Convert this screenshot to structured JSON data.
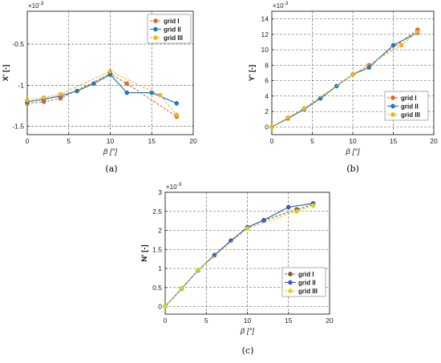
{
  "chart_data": [
    {
      "type": "line",
      "caption": "(a)",
      "ylabel": "X' [-]",
      "xlabel": "β [°]",
      "exponent": "×10",
      "exponent_power": "-3",
      "xlim": [
        0,
        20
      ],
      "ylim": [
        -1.6,
        -0.1
      ],
      "xticks": [
        "0",
        "5",
        "10",
        "15",
        "20"
      ],
      "xtick_values": [
        0,
        5,
        10,
        15,
        20
      ],
      "yticks": [
        "-0.5",
        "-1",
        "-1.5"
      ],
      "ytick_values": [
        -0.5,
        -1.0,
        -1.5
      ],
      "grid": true,
      "legend_position": "top-right",
      "series": [
        {
          "name": "grid I",
          "color": "#E8632B",
          "style": "dashed",
          "x": [
            0,
            2,
            4,
            10,
            12,
            18
          ],
          "y": [
            -1.22,
            -1.2,
            -1.16,
            -0.86,
            -0.98,
            -1.38
          ]
        },
        {
          "name": "grid II",
          "color": "#1F7BB8",
          "style": "solid",
          "x": [
            0,
            2,
            4,
            6,
            8,
            10,
            12,
            15,
            18
          ],
          "y": [
            -1.2,
            -1.17,
            -1.13,
            -1.07,
            -0.98,
            -0.87,
            -1.09,
            -1.09,
            -1.22
          ]
        },
        {
          "name": "grid III",
          "color": "#F2B21B",
          "style": "dashed",
          "x": [
            0,
            2,
            4,
            10,
            16,
            18
          ],
          "y": [
            -1.18,
            -1.15,
            -1.11,
            -0.83,
            -1.12,
            -1.36
          ]
        }
      ]
    },
    {
      "type": "line",
      "caption": "(b)",
      "ylabel": "Y' [-]",
      "xlabel": "β [°]",
      "exponent": "×10",
      "exponent_power": "-3",
      "xlim": [
        0,
        20
      ],
      "ylim": [
        -1,
        15
      ],
      "xticks": [
        "0",
        "5",
        "10",
        "15",
        "20"
      ],
      "xtick_values": [
        0,
        5,
        10,
        15,
        20
      ],
      "yticks": [
        "0",
        "2",
        "4",
        "6",
        "8",
        "10",
        "12",
        "14"
      ],
      "ytick_values": [
        0,
        2,
        4,
        6,
        8,
        10,
        12,
        14
      ],
      "grid": true,
      "legend_position": "bottom-right",
      "series": [
        {
          "name": "grid I",
          "color": "#E8632B",
          "style": "dashed",
          "x": [
            0,
            2,
            4,
            10,
            12,
            18
          ],
          "y": [
            0,
            1.2,
            2.4,
            6.8,
            8.0,
            12.6
          ]
        },
        {
          "name": "grid II",
          "color": "#1F7BB8",
          "style": "solid",
          "x": [
            0,
            2,
            4,
            6,
            8,
            10,
            12,
            15,
            18
          ],
          "y": [
            0,
            1.1,
            2.3,
            3.7,
            5.3,
            6.8,
            7.7,
            10.6,
            12.2
          ]
        },
        {
          "name": "grid III",
          "color": "#F2B21B",
          "style": "dashed",
          "x": [
            0,
            2,
            4,
            10,
            16,
            18
          ],
          "y": [
            0,
            1.2,
            2.4,
            6.8,
            10.6,
            12.3
          ]
        }
      ]
    },
    {
      "type": "line",
      "caption": "(c)",
      "ylabel": "N' [-]",
      "xlabel": "β [°]",
      "exponent": "×10",
      "exponent_power": "-3",
      "xlim": [
        0,
        20
      ],
      "ylim": [
        -0.2,
        3
      ],
      "xticks": [
        "0",
        "5",
        "10",
        "15",
        "20"
      ],
      "xtick_values": [
        0,
        5,
        10,
        15,
        20
      ],
      "yticks": [
        "0",
        "0.5",
        "1",
        "1.5",
        "2",
        "2.5",
        "3"
      ],
      "ytick_values": [
        0,
        0.5,
        1.0,
        1.5,
        2.0,
        2.5,
        3.0
      ],
      "grid": true,
      "legend_position": "bottom-right",
      "series": [
        {
          "name": "grid I",
          "color": "#8B5A2B",
          "style": "dashed",
          "x": [
            0,
            2,
            4,
            6,
            8,
            10,
            12,
            16,
            18
          ],
          "y": [
            0,
            0.47,
            0.95,
            1.35,
            1.73,
            2.08,
            2.26,
            2.55,
            2.68
          ]
        },
        {
          "name": "grid II",
          "color": "#3B5FC0",
          "style": "solid",
          "x": [
            0,
            2,
            4,
            6,
            8,
            10,
            12,
            15,
            18
          ],
          "y": [
            0,
            0.47,
            0.95,
            1.35,
            1.73,
            2.08,
            2.27,
            2.61,
            2.71
          ]
        },
        {
          "name": "grid III",
          "color": "#D4D41E",
          "style": "dashed",
          "x": [
            0,
            2,
            4,
            10,
            16,
            18
          ],
          "y": [
            0,
            0.48,
            0.96,
            2.05,
            2.5,
            2.65
          ]
        }
      ]
    }
  ]
}
